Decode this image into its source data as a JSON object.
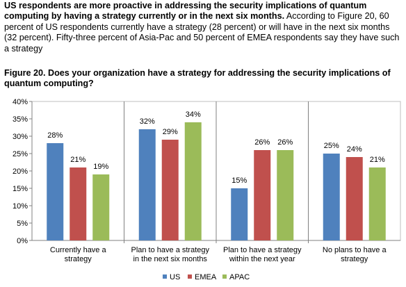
{
  "intro": {
    "bold": "US respondents are more proactive in addressing the security implications of quantum computing by having a strategy currently or in the next six months.",
    "rest": " According to Figure 20, 60 percent of US respondents currently have a strategy (28 percent) or will have in the next six months (32 percent). Fifty-three percent of Asia-Pac and 50 percent of EMEA respondents say they have such a strategy"
  },
  "chart_data": {
    "type": "bar",
    "title": "Figure 20. Does your organization have a strategy for addressing the security implications of quantum computing?",
    "categories": [
      [
        "Currently have a",
        "strategy"
      ],
      [
        "Plan to have a strategy",
        "in the next six months"
      ],
      [
        "Plan to have a strategy",
        "within the next year"
      ],
      [
        "No plans to have a",
        "strategy"
      ]
    ],
    "series": [
      {
        "name": "US",
        "color": "#4F81BD",
        "values": [
          28,
          32,
          15,
          25
        ]
      },
      {
        "name": "EMEA",
        "color": "#C0504D",
        "values": [
          21,
          29,
          26,
          24
        ]
      },
      {
        "name": "APAC",
        "color": "#9BBB59",
        "values": [
          19,
          34,
          26,
          21
        ]
      }
    ],
    "ylim": [
      0,
      40
    ],
    "yticks": [
      0,
      5,
      10,
      15,
      20,
      25,
      30,
      35,
      40
    ],
    "value_suffix": "%",
    "grid": "vertical separators between categories",
    "legend": "bottom-center"
  }
}
